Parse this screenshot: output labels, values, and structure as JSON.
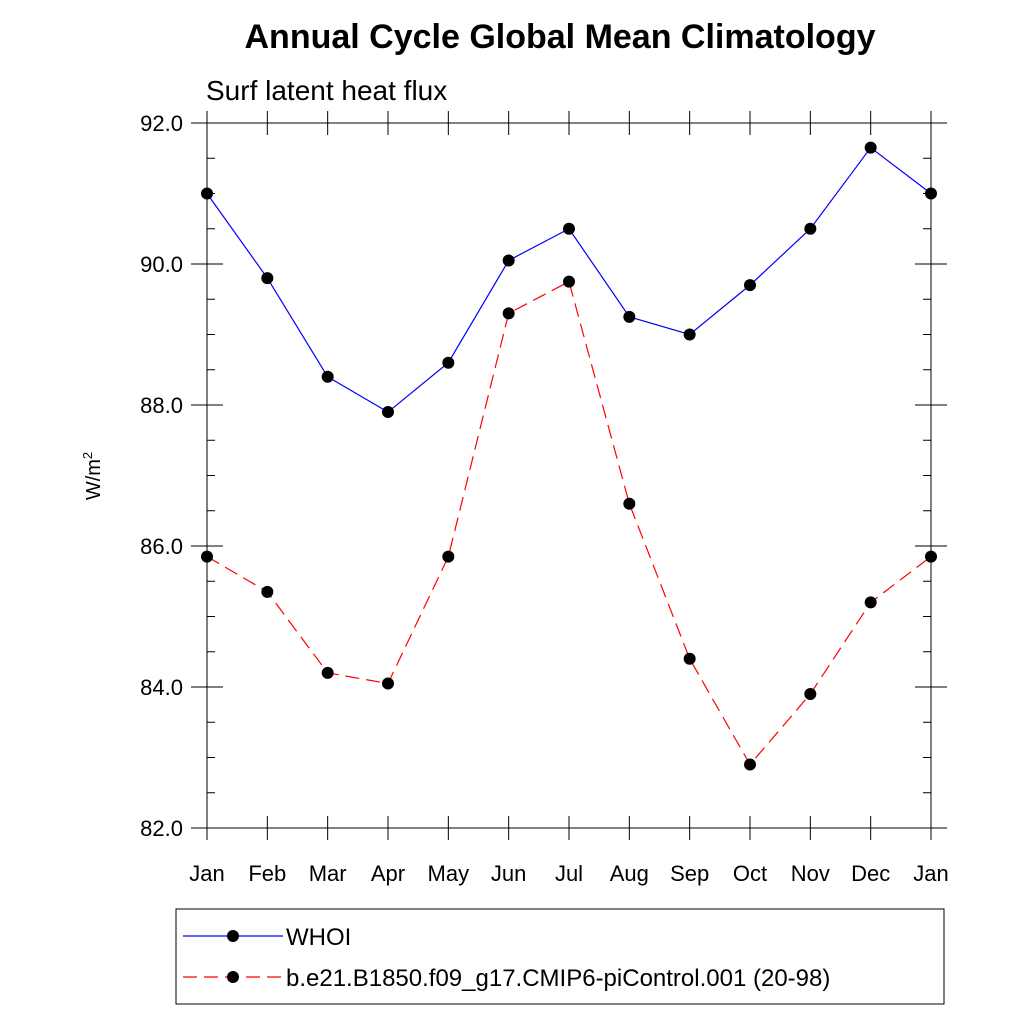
{
  "chart_data": {
    "type": "line",
    "title": "Annual Cycle Global Mean Climatology",
    "subtitle": "Surf latent heat flux",
    "xlabel": "",
    "ylabel": "W/m",
    "ylabel_superscript": "2",
    "categories": [
      "Jan",
      "Feb",
      "Mar",
      "Apr",
      "May",
      "Jun",
      "Jul",
      "Aug",
      "Sep",
      "Oct",
      "Nov",
      "Dec",
      "Jan"
    ],
    "ylim": [
      82.0,
      92.0
    ],
    "yticks": [
      "82.0",
      "84.0",
      "86.0",
      "88.0",
      "90.0",
      "92.0"
    ],
    "ytick_values": [
      82,
      84,
      86,
      88,
      90,
      92
    ],
    "series": [
      {
        "name": "WHOI",
        "color": "#0000ff",
        "dash": "solid",
        "values": [
          91.0,
          89.8,
          88.4,
          87.9,
          88.6,
          90.05,
          90.5,
          89.25,
          89.0,
          89.7,
          90.5,
          91.65,
          91.0
        ]
      },
      {
        "name": "b.e21.B1850.f09_g17.CMIP6-piControl.001 (20-98)",
        "color": "#ff0000",
        "dash": "dashed",
        "values": [
          85.85,
          85.35,
          84.2,
          84.05,
          85.85,
          89.3,
          89.75,
          86.6,
          84.4,
          82.9,
          83.9,
          85.2,
          85.85
        ]
      }
    ],
    "legend_position": "bottom"
  }
}
